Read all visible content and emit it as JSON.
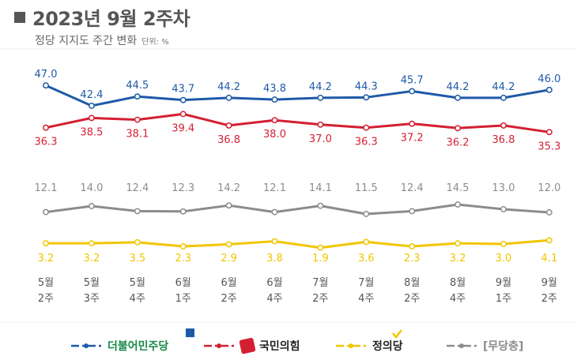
{
  "header": {
    "title": "2023년 9월 2주차",
    "subtitle": "정당 지지도 주간 변화",
    "unit": "단위: %"
  },
  "chart_data": {
    "type": "line",
    "categories": [
      [
        "5월",
        "2주"
      ],
      [
        "5월",
        "3주"
      ],
      [
        "5월",
        "4주"
      ],
      [
        "6월",
        "1주"
      ],
      [
        "6월",
        "2주"
      ],
      [
        "6월",
        "4주"
      ],
      [
        "7월",
        "2주"
      ],
      [
        "7월",
        "4주"
      ],
      [
        "8월",
        "2주"
      ],
      [
        "8월",
        "4주"
      ],
      [
        "9월",
        "1주"
      ],
      [
        "9월",
        "2주"
      ]
    ],
    "series": [
      {
        "name": "더불어민주당",
        "color": "#1e5aa8",
        "values": [
          47.0,
          42.4,
          44.5,
          43.7,
          44.2,
          43.8,
          44.2,
          44.3,
          45.7,
          44.2,
          44.2,
          46.0
        ]
      },
      {
        "name": "국민의힘",
        "color": "#d41f32",
        "values": [
          36.3,
          38.5,
          38.1,
          39.4,
          36.8,
          38.0,
          37.0,
          36.3,
          37.2,
          36.2,
          36.8,
          35.3
        ]
      },
      {
        "name": "정의당",
        "color": "#f2c500",
        "values": [
          3.2,
          3.2,
          3.5,
          2.3,
          2.9,
          3.8,
          1.9,
          3.6,
          2.3,
          3.2,
          3.0,
          4.1
        ]
      },
      {
        "name": "[무당층]",
        "color": "#8c8c8c",
        "values": [
          12.1,
          14.0,
          12.4,
          12.3,
          14.2,
          12.1,
          14.1,
          11.5,
          12.4,
          14.5,
          13.0,
          12.0
        ]
      }
    ]
  }
}
